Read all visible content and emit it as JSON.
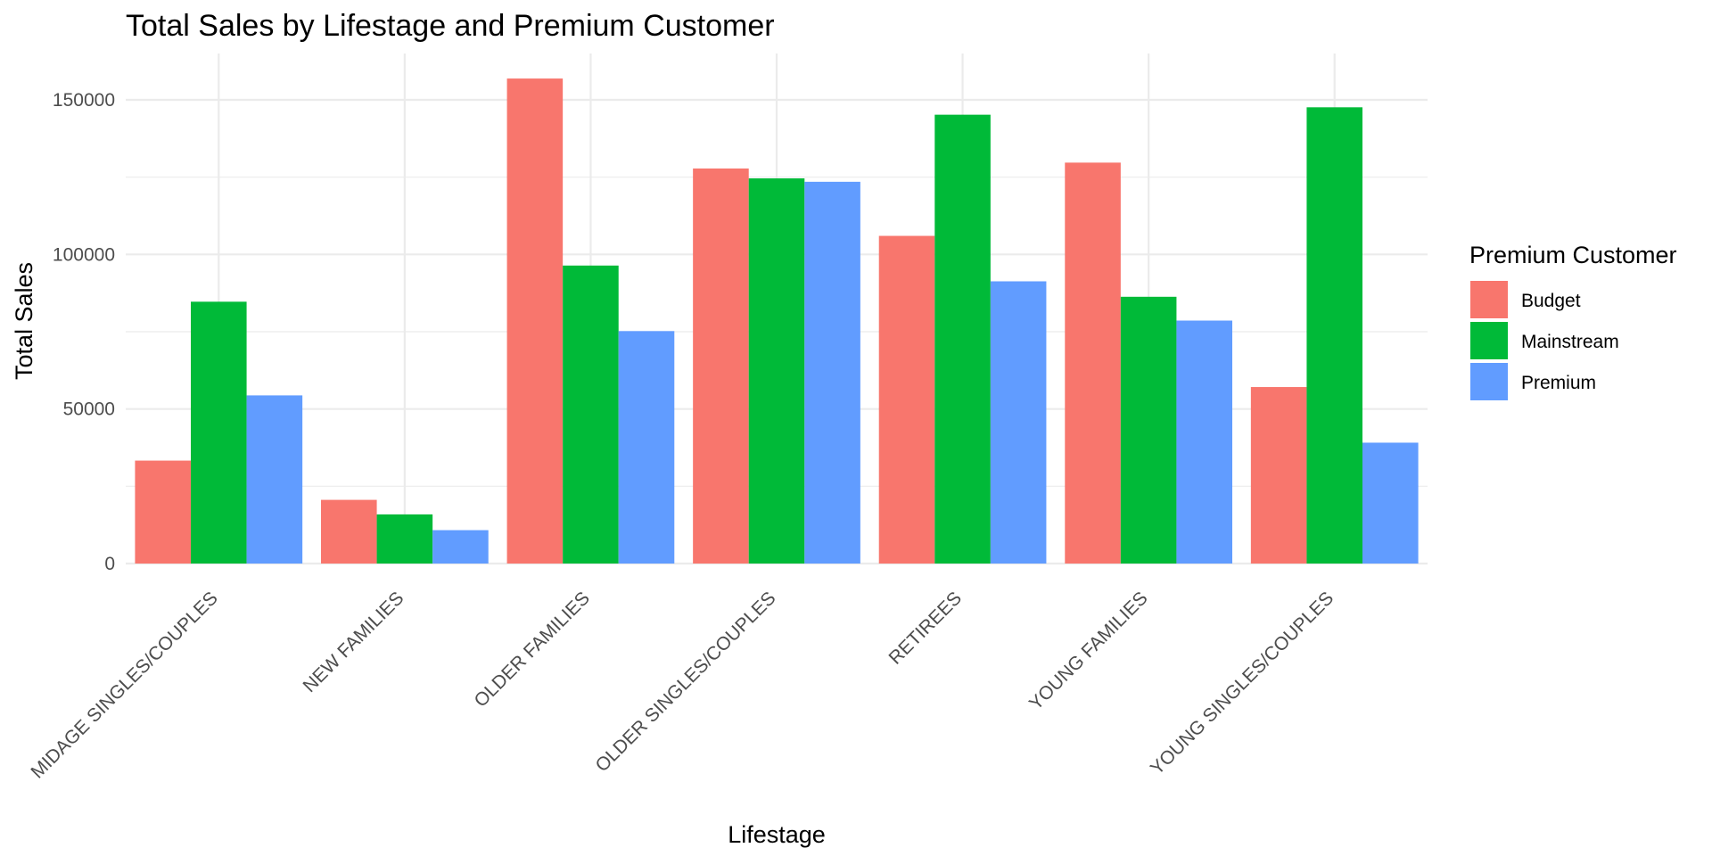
{
  "chart_data": {
    "type": "bar",
    "title": "Total Sales by Lifestage and Premium Customer",
    "xlabel": "Lifestage",
    "ylabel": "Total Sales",
    "categories": [
      "MIDAGE SINGLES/COUPLES",
      "NEW FAMILIES",
      "OLDER FAMILIES",
      "OLDER SINGLES/COUPLES",
      "RETIREES",
      "YOUNG FAMILIES",
      "YOUNG SINGLES/COUPLES"
    ],
    "series": [
      {
        "name": "Budget",
        "color": "#F8766D",
        "values": [
          33300,
          20600,
          156900,
          127800,
          106000,
          129700,
          57100
        ]
      },
      {
        "name": "Mainstream",
        "color": "#00BA38",
        "values": [
          84700,
          15900,
          96400,
          124600,
          145200,
          86300,
          147600
        ]
      },
      {
        "name": "Premium",
        "color": "#619CFF",
        "values": [
          54400,
          10800,
          75200,
          123500,
          91300,
          78600,
          39100
        ]
      }
    ],
    "yticks": [
      0,
      50000,
      100000,
      150000
    ],
    "ylim": [
      0,
      165000
    ],
    "grid": true,
    "legend": {
      "title": "Premium Customer",
      "placement": "right"
    }
  }
}
